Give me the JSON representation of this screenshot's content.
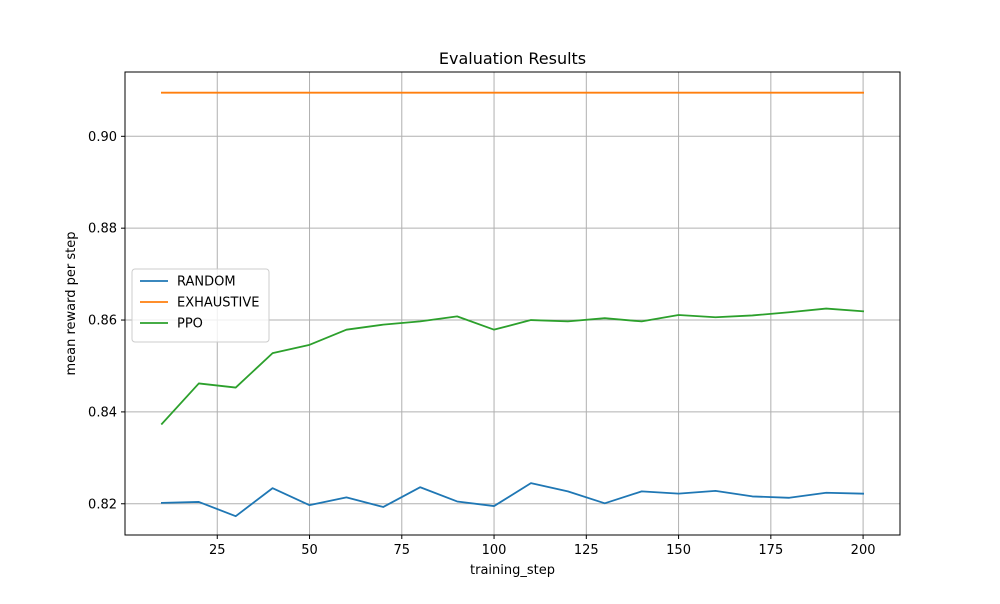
{
  "chart_data": {
    "type": "line",
    "title": "Evaluation Results",
    "xlabel": "training_step",
    "ylabel": "mean reward per step",
    "xlim": [
      0,
      210
    ],
    "ylim": [
      0.8132,
      0.914
    ],
    "x_ticks": [
      25,
      50,
      75,
      100,
      125,
      150,
      175,
      200
    ],
    "x_tick_labels": [
      "25",
      "50",
      "75",
      "100",
      "125",
      "150",
      "175",
      "200"
    ],
    "y_ticks": [
      0.82,
      0.84,
      0.86,
      0.88,
      0.9
    ],
    "y_tick_labels": [
      "0.82",
      "0.84",
      "0.86",
      "0.88",
      "0.90"
    ],
    "grid": true,
    "legend_position": "center-left",
    "x": [
      10,
      20,
      30,
      40,
      50,
      60,
      70,
      80,
      90,
      100,
      110,
      120,
      130,
      140,
      150,
      160,
      170,
      180,
      190,
      200
    ],
    "series": [
      {
        "name": "RANDOM",
        "color": "#1f77b4",
        "values": [
          0.8202,
          0.8204,
          0.8173,
          0.8234,
          0.8197,
          0.8214,
          0.8193,
          0.8236,
          0.8205,
          0.8195,
          0.8245,
          0.8227,
          0.8201,
          0.8227,
          0.8222,
          0.8228,
          0.8216,
          0.8213,
          0.8224,
          0.8222
        ]
      },
      {
        "name": "EXHAUSTIVE",
        "color": "#ff7f0e",
        "values": [
          0.9095,
          0.9095,
          0.9095,
          0.9095,
          0.9095,
          0.9095,
          0.9095,
          0.9095,
          0.9095,
          0.9095,
          0.9095,
          0.9095,
          0.9095,
          0.9095,
          0.9095,
          0.9095,
          0.9095,
          0.9095,
          0.9095,
          0.9095
        ]
      },
      {
        "name": "PPO",
        "color": "#2ca02c",
        "values": [
          0.8374,
          0.8462,
          0.8453,
          0.8528,
          0.8546,
          0.8579,
          0.859,
          0.8597,
          0.8608,
          0.8579,
          0.86,
          0.8597,
          0.8604,
          0.8597,
          0.8611,
          0.8606,
          0.861,
          0.8617,
          0.8625,
          0.8619
        ]
      }
    ]
  }
}
